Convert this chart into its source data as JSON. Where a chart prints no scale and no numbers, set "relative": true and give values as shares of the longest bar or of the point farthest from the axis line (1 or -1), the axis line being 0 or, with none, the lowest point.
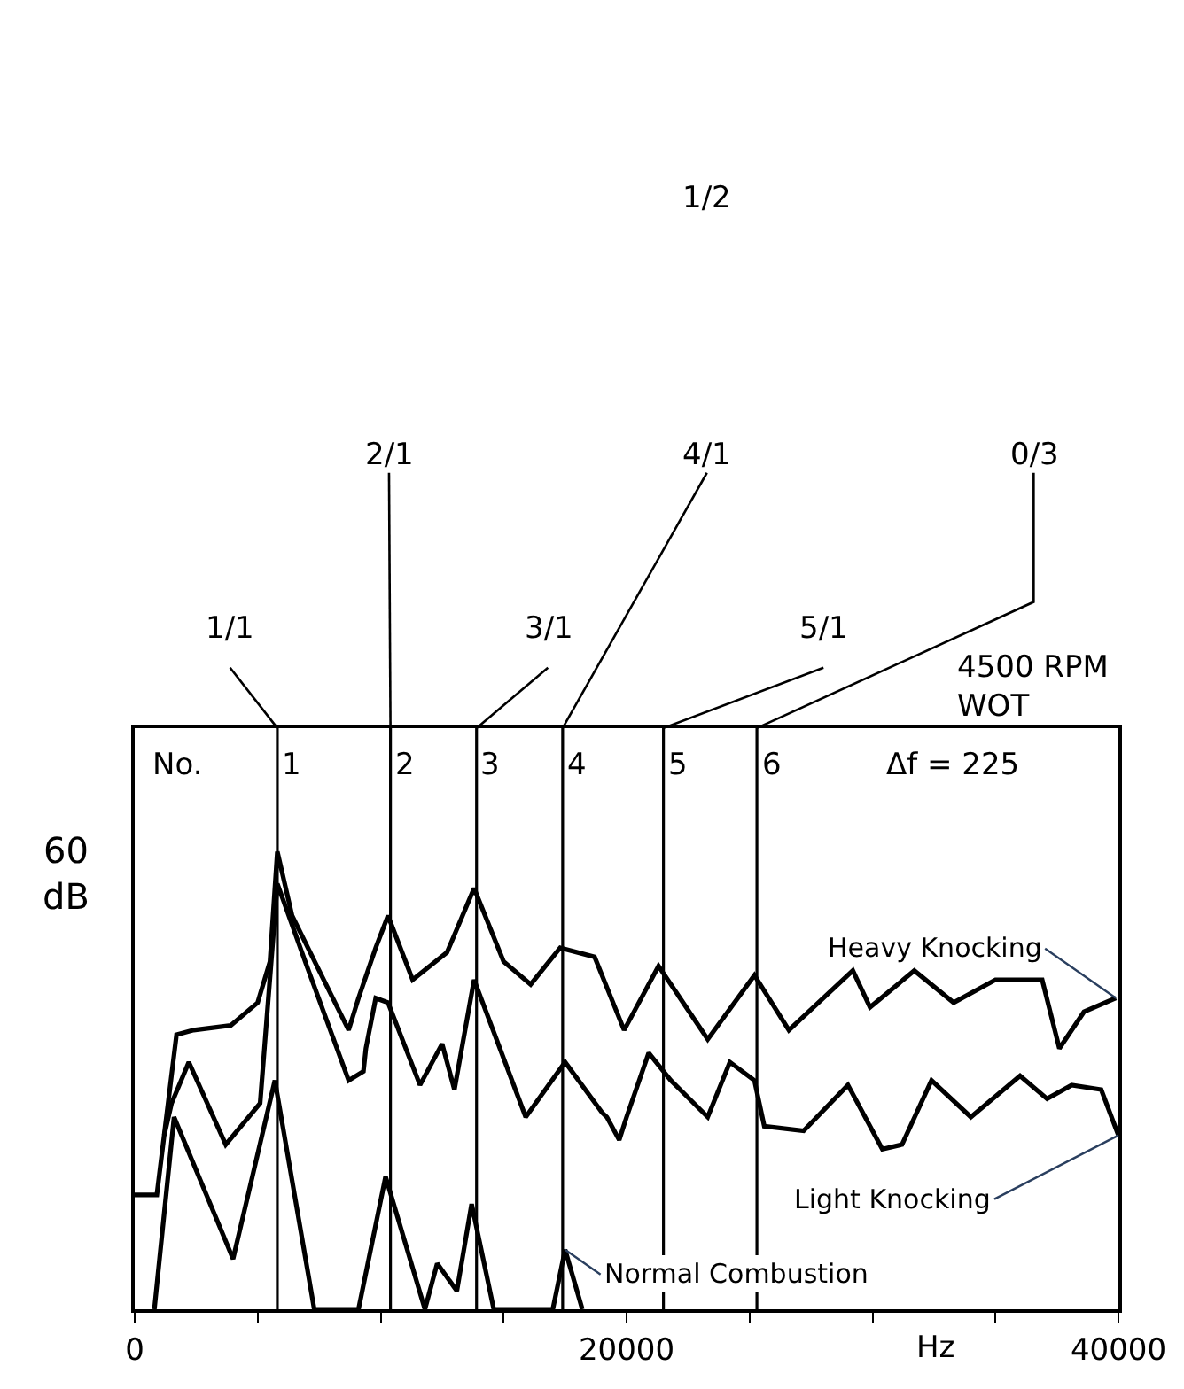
{
  "chart_data": {
    "type": "line",
    "relative": true,
    "ylabel": "60\ndB",
    "xlabel": "Hz",
    "xlim": [
      0,
      40000
    ],
    "xticks": [
      0,
      {
        "value": 5000,
        "label": null
      },
      {
        "value": 10000,
        "label": null
      },
      {
        "value": 15000,
        "label": null
      },
      20000,
      {
        "value": 25000,
        "label": null
      },
      {
        "value": 30000,
        "label": null
      },
      {
        "value": 35000,
        "label": null
      },
      40000
    ],
    "legend": false,
    "marker": "none",
    "line_style": "solid",
    "series": [
      {
        "name": "Heavy Knocking",
        "color": "#000000",
        "x": [
          0,
          900,
          1700,
          2400,
          3900,
          5000,
          5500,
          5800,
          6400,
          7500,
          8700,
          9100,
          9800,
          10300,
          11300,
          12700,
          13800,
          15000,
          16100,
          17300,
          18700,
          19900,
          21300,
          23300,
          25200,
          26600,
          29200,
          29900,
          31700,
          33300,
          35000,
          36900,
          37600,
          38600,
          39900
        ],
        "values": [
          0.25,
          0.25,
          0.6,
          0.61,
          0.62,
          0.67,
          0.76,
          1.0,
          0.86,
          0.74,
          0.61,
          0.68,
          0.79,
          0.86,
          0.72,
          0.78,
          0.92,
          0.76,
          0.71,
          0.79,
          0.77,
          0.61,
          0.75,
          0.59,
          0.73,
          0.61,
          0.74,
          0.66,
          0.74,
          0.67,
          0.72,
          0.72,
          0.57,
          0.65,
          0.68
        ]
      },
      {
        "name": "Light Knocking",
        "color": "#000000",
        "x": [
          1200,
          1500,
          2200,
          3700,
          5100,
          5800,
          7000,
          8700,
          9300,
          9400,
          9800,
          10300,
          11600,
          12500,
          13000,
          13800,
          15900,
          17500,
          19000,
          19200,
          19700,
          20000,
          20900,
          21800,
          23300,
          24200,
          25200,
          25600,
          27200,
          29000,
          30400,
          31200,
          32400,
          34000,
          36000,
          37100,
          38100,
          39300,
          40000
        ],
        "values": [
          0.38,
          0.45,
          0.54,
          0.36,
          0.45,
          0.93,
          0.75,
          0.5,
          0.52,
          0.57,
          0.68,
          0.67,
          0.49,
          0.58,
          0.48,
          0.72,
          0.42,
          0.54,
          0.43,
          0.42,
          0.37,
          0.42,
          0.56,
          0.5,
          0.42,
          0.54,
          0.5,
          0.4,
          0.39,
          0.49,
          0.35,
          0.36,
          0.5,
          0.42,
          0.51,
          0.46,
          0.49,
          0.48,
          0.38
        ]
      },
      {
        "name": "Normal Combustion",
        "color": "#000000",
        "x": [
          800,
          1600,
          4000,
          5700,
          7300,
          9100,
          10200,
          11800,
          12300,
          13100,
          13700,
          14600,
          17000,
          17500,
          18200
        ],
        "values": [
          0,
          0.42,
          0.11,
          0.5,
          0,
          0,
          0.29,
          0,
          0.1,
          0.04,
          0.23,
          0,
          0,
          0.13,
          0
        ]
      }
    ],
    "ref_lines": [
      {
        "axis": "x",
        "value": 5800,
        "color": "#000000"
      },
      {
        "axis": "x",
        "value": 10400,
        "color": "#000000"
      },
      {
        "axis": "x",
        "value": 13900,
        "color": "#000000"
      },
      {
        "axis": "x",
        "value": 17400,
        "color": "#000000"
      },
      {
        "axis": "x",
        "value": 21500,
        "color": "#000000"
      },
      {
        "axis": "x",
        "value": 25300,
        "color": "#000000"
      }
    ],
    "annotations": [
      "1/1",
      "2/1",
      "3/1",
      "4/1",
      "5/1",
      "0/3",
      "1/2",
      "4500 RPM\nWOT",
      "No.",
      "Δf = 225",
      "1",
      "2",
      "3",
      "4",
      "5",
      "6"
    ]
  }
}
